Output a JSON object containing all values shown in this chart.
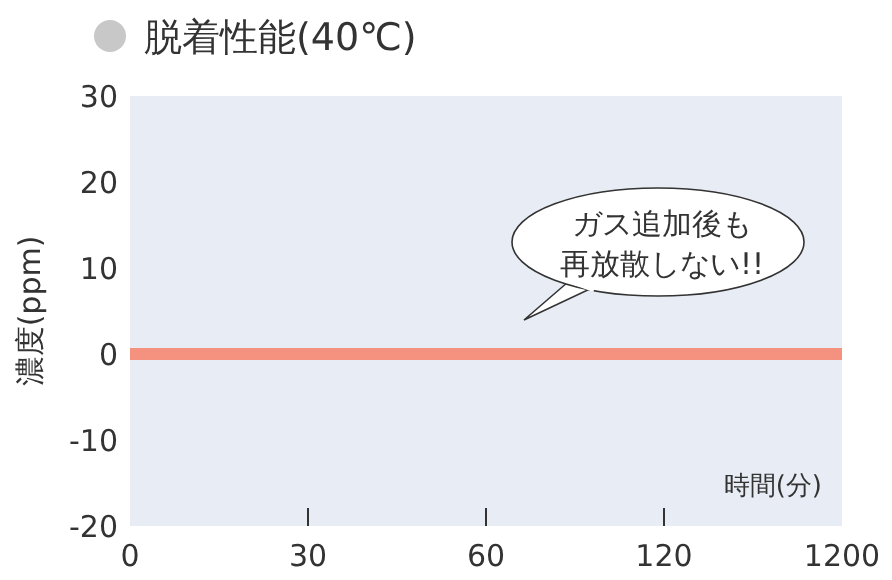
{
  "chart_data": {
    "type": "line",
    "title": "脱着性能(40℃)",
    "ylabel": "濃度(ppm)",
    "xlabel": "時間(分)",
    "categories": [
      "0",
      "30",
      "60",
      "120",
      "1200"
    ],
    "series": [
      {
        "color": "#f4917f",
        "values": [
          0,
          0,
          0,
          0,
          0
        ]
      }
    ],
    "ylim": [
      -20,
      30
    ],
    "yticks": [
      -20,
      -10,
      0,
      10,
      20,
      30
    ],
    "grid": false,
    "marker": "none",
    "line_style": "solid",
    "annotations": [
      "ガス追加後も",
      "再放散しない!!"
    ]
  }
}
